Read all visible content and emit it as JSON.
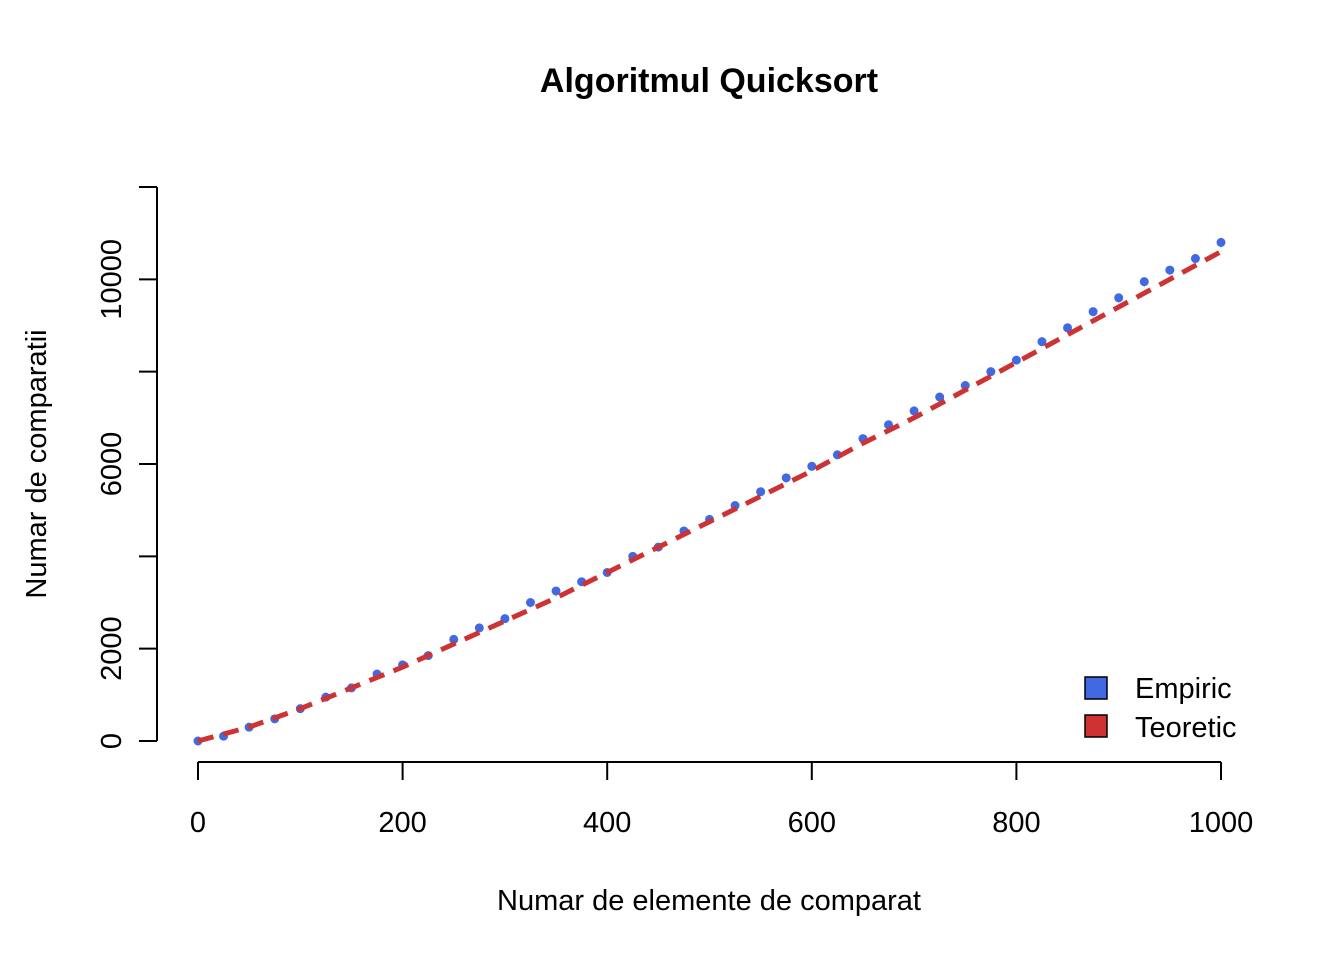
{
  "chart_data": {
    "type": "scatter",
    "title": "Algoritmul Quicksort",
    "xlabel": "Numar de elemente de comparat",
    "ylabel": "Numar de comparatii",
    "xlim": [
      0,
      1000
    ],
    "ylim": [
      0,
      12000
    ],
    "x_ticks": [
      0,
      200,
      400,
      600,
      800,
      1000
    ],
    "y_ticks": [
      0,
      2000,
      4000,
      6000,
      8000,
      10000,
      12000
    ],
    "y_tick_labels": [
      "0",
      "2000",
      "",
      "6000",
      "",
      "10000",
      ""
    ],
    "grid": false,
    "legend_position": "bottom-right",
    "series": [
      {
        "name": "Empiric",
        "kind": "points",
        "color": "#4169E1",
        "x": [
          0,
          25,
          50,
          75,
          100,
          125,
          150,
          175,
          200,
          225,
          250,
          275,
          300,
          325,
          350,
          375,
          400,
          425,
          450,
          475,
          500,
          525,
          550,
          575,
          600,
          625,
          650,
          675,
          700,
          725,
          750,
          775,
          800,
          825,
          850,
          875,
          900,
          925,
          950,
          975,
          1000
        ],
        "y": [
          0,
          105,
          300,
          480,
          700,
          950,
          1150,
          1450,
          1650,
          1850,
          2200,
          2450,
          2650,
          3000,
          3250,
          3450,
          3650,
          4000,
          4200,
          4550,
          4800,
          5100,
          5400,
          5700,
          5950,
          6200,
          6550,
          6850,
          7150,
          7450,
          7700,
          8000,
          8250,
          8650,
          8950,
          9300,
          9600,
          9950,
          10200,
          10450,
          10800
        ]
      },
      {
        "name": "Teoretic",
        "kind": "dashed-line",
        "color": "#CD3333",
        "x": [
          0,
          50,
          100,
          150,
          200,
          250,
          300,
          350,
          400,
          450,
          500,
          550,
          600,
          650,
          700,
          750,
          800,
          850,
          900,
          950,
          1000
        ],
        "y": [
          0,
          300,
          700,
          1150,
          1600,
          2100,
          2600,
          3100,
          3650,
          4200,
          4750,
          5300,
          5850,
          6450,
          7000,
          7600,
          8200,
          8800,
          9400,
          10000,
          10600
        ]
      }
    ],
    "legend": [
      {
        "label": "Empiric",
        "color": "#4169E1"
      },
      {
        "label": "Teoretic",
        "color": "#CD3333"
      }
    ]
  }
}
